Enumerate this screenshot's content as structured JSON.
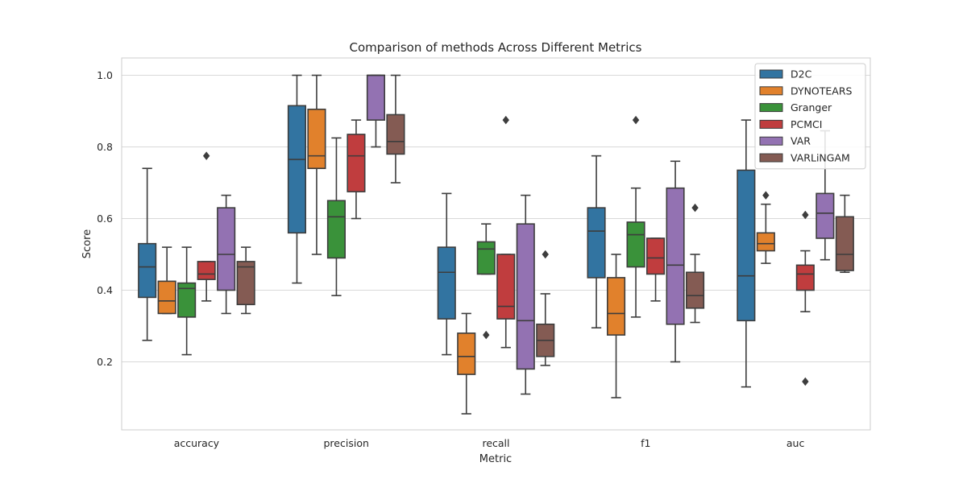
{
  "chart_data": {
    "type": "box",
    "title": "Comparison of methods Across Different Metrics",
    "xlabel": "Metric",
    "ylabel": "Score",
    "categories": [
      "accuracy",
      "precision",
      "recall",
      "f1",
      "auc"
    ],
    "ylim": [
      0.0,
      1.05
    ],
    "yticks": [
      0.2,
      0.4,
      0.6,
      0.8,
      1.0
    ],
    "ytick_labels": [
      "0.2",
      "0.4",
      "0.6",
      "0.8",
      "1.0"
    ],
    "grid": true,
    "legend_position": "top-right",
    "series": [
      {
        "name": "D2C",
        "color": "#3274a1",
        "boxes": [
          {
            "whislo": 0.26,
            "q1": 0.38,
            "med": 0.465,
            "q3": 0.53,
            "whishi": 0.74,
            "fliers": []
          },
          {
            "whislo": 0.42,
            "q1": 0.56,
            "med": 0.765,
            "q3": 0.915,
            "whishi": 1.0,
            "fliers": []
          },
          {
            "whislo": 0.22,
            "q1": 0.32,
            "med": 0.45,
            "q3": 0.52,
            "whishi": 0.67,
            "fliers": []
          },
          {
            "whislo": 0.295,
            "q1": 0.435,
            "med": 0.565,
            "q3": 0.63,
            "whishi": 0.775,
            "fliers": []
          },
          {
            "whislo": 0.13,
            "q1": 0.315,
            "med": 0.44,
            "q3": 0.735,
            "whishi": 0.875,
            "fliers": []
          }
        ]
      },
      {
        "name": "DYNOTEARS",
        "color": "#e1812c",
        "boxes": [
          {
            "whislo": 0.335,
            "q1": 0.335,
            "med": 0.37,
            "q3": 0.425,
            "whishi": 0.52,
            "fliers": []
          },
          {
            "whislo": 0.5,
            "q1": 0.74,
            "med": 0.775,
            "q3": 0.905,
            "whishi": 1.0,
            "fliers": []
          },
          {
            "whislo": 0.055,
            "q1": 0.165,
            "med": 0.215,
            "q3": 0.28,
            "whishi": 0.335,
            "fliers": []
          },
          {
            "whislo": 0.1,
            "q1": 0.275,
            "med": 0.335,
            "q3": 0.435,
            "whishi": 0.5,
            "fliers": []
          },
          {
            "whislo": 0.475,
            "q1": 0.51,
            "med": 0.53,
            "q3": 0.56,
            "whishi": 0.64,
            "fliers": [
              0.665
            ]
          }
        ]
      },
      {
        "name": "Granger",
        "color": "#3a923a",
        "boxes": [
          {
            "whislo": 0.22,
            "q1": 0.325,
            "med": 0.405,
            "q3": 0.42,
            "whishi": 0.52,
            "fliers": []
          },
          {
            "whislo": 0.385,
            "q1": 0.49,
            "med": 0.605,
            "q3": 0.65,
            "whishi": 0.825,
            "fliers": []
          },
          {
            "whislo": 0.445,
            "q1": 0.445,
            "med": 0.515,
            "q3": 0.535,
            "whishi": 0.585,
            "fliers": [
              0.275
            ]
          },
          {
            "whislo": 0.325,
            "q1": 0.465,
            "med": 0.555,
            "q3": 0.59,
            "whishi": 0.685,
            "fliers": [
              0.875
            ]
          },
          null
        ]
      },
      {
        "name": "PCMCI",
        "color": "#c03d3e",
        "boxes": [
          {
            "whislo": 0.37,
            "q1": 0.43,
            "med": 0.445,
            "q3": 0.48,
            "whishi": 0.48,
            "fliers": [
              0.775
            ]
          },
          {
            "whislo": 0.6,
            "q1": 0.675,
            "med": 0.775,
            "q3": 0.835,
            "whishi": 0.875,
            "fliers": []
          },
          {
            "whislo": 0.24,
            "q1": 0.32,
            "med": 0.355,
            "q3": 0.5,
            "whishi": 0.5,
            "fliers": [
              0.875
            ]
          },
          {
            "whislo": 0.37,
            "q1": 0.445,
            "med": 0.49,
            "q3": 0.545,
            "whishi": 0.545,
            "fliers": []
          },
          {
            "whislo": 0.34,
            "q1": 0.4,
            "med": 0.445,
            "q3": 0.47,
            "whishi": 0.51,
            "fliers": [
              0.61,
              0.145
            ]
          }
        ]
      },
      {
        "name": "VAR",
        "color": "#9372b2",
        "boxes": [
          {
            "whislo": 0.335,
            "q1": 0.4,
            "med": 0.5,
            "q3": 0.63,
            "whishi": 0.665,
            "fliers": []
          },
          {
            "whislo": 0.8,
            "q1": 0.875,
            "med": 1.0,
            "q3": 1.0,
            "whishi": 1.0,
            "fliers": []
          },
          {
            "whislo": 0.11,
            "q1": 0.18,
            "med": 0.315,
            "q3": 0.585,
            "whishi": 0.665,
            "fliers": []
          },
          {
            "whislo": 0.2,
            "q1": 0.305,
            "med": 0.47,
            "q3": 0.685,
            "whishi": 0.76,
            "fliers": []
          },
          {
            "whislo": 0.485,
            "q1": 0.545,
            "med": 0.615,
            "q3": 0.67,
            "whishi": 0.845,
            "fliers": []
          }
        ]
      },
      {
        "name": "VARLiNGAM",
        "color": "#845b53",
        "boxes": [
          {
            "whislo": 0.335,
            "q1": 0.36,
            "med": 0.465,
            "q3": 0.48,
            "whishi": 0.52,
            "fliers": []
          },
          {
            "whislo": 0.7,
            "q1": 0.78,
            "med": 0.815,
            "q3": 0.89,
            "whishi": 1.0,
            "fliers": []
          },
          {
            "whislo": 0.19,
            "q1": 0.215,
            "med": 0.26,
            "q3": 0.305,
            "whishi": 0.39,
            "fliers": [
              0.5
            ]
          },
          {
            "whislo": 0.31,
            "q1": 0.35,
            "med": 0.385,
            "q3": 0.45,
            "whishi": 0.5,
            "fliers": [
              0.63
            ]
          },
          {
            "whislo": 0.45,
            "q1": 0.455,
            "med": 0.5,
            "q3": 0.605,
            "whishi": 0.665,
            "fliers": []
          }
        ]
      }
    ]
  }
}
